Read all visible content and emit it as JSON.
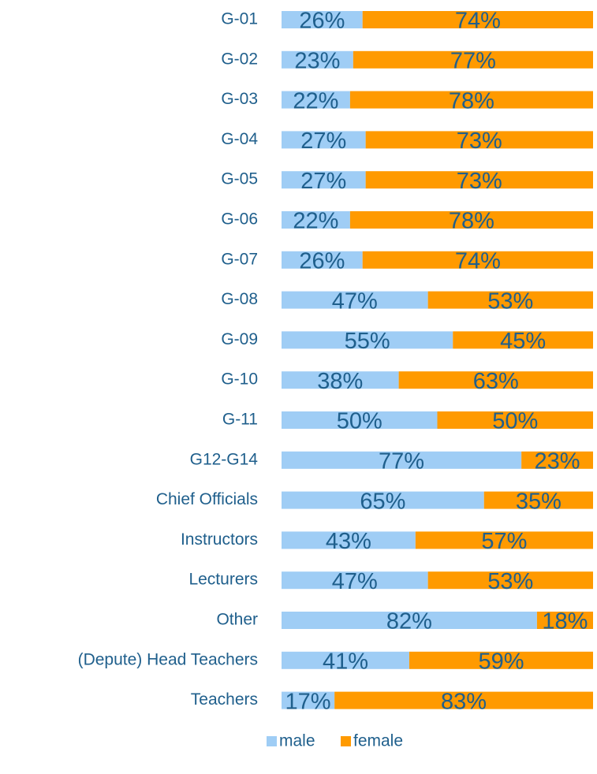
{
  "chart_data": {
    "type": "bar",
    "categories": [
      "G-01",
      "G-02",
      "G-03",
      "G-04",
      "G-05",
      "G-06",
      "G-07",
      "G-08",
      "G-09",
      "G-10",
      "G-11",
      "G12-G14",
      "Chief Officials",
      "Instructors",
      "Lecturers",
      "Other",
      "(Depute) Head Teachers",
      "Teachers"
    ],
    "series": [
      {
        "name": "male",
        "color": "#9fcdf5",
        "values": [
          26,
          23,
          22,
          27,
          27,
          22,
          26,
          47,
          55,
          38,
          50,
          77,
          65,
          43,
          47,
          82,
          41,
          17
        ],
        "value_labels": [
          "26%",
          "23%",
          "22%",
          "27%",
          "27%",
          "22%",
          "26%",
          "47%",
          "55%",
          "38%",
          "50%",
          "77%",
          "65%",
          "43%",
          "47%",
          "82%",
          "41%",
          "17%"
        ]
      },
      {
        "name": "female",
        "color": "#ff9a00",
        "values": [
          74,
          77,
          78,
          73,
          73,
          78,
          74,
          53,
          45,
          63,
          50,
          23,
          35,
          57,
          53,
          18,
          59,
          83
        ],
        "value_labels": [
          "74%",
          "77%",
          "78%",
          "73%",
          "73%",
          "78%",
          "74%",
          "53%",
          "45%",
          "63%",
          "50%",
          "23%",
          "35%",
          "57%",
          "53%",
          "18%",
          "59%",
          "83%"
        ]
      }
    ],
    "legend": "bottom"
  }
}
